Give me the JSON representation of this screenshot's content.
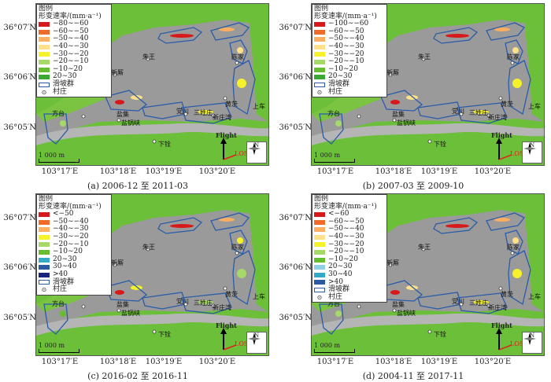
{
  "panels": [
    {
      "caption": "(a) 2006-12 至 2011-03",
      "legend": {
        "title": "图例",
        "subtitle": "形变速率/(mm·a⁻¹)",
        "items": [
          {
            "label": "−80∼−60",
            "color": "#d7191c"
          },
          {
            "label": "−60∼−50",
            "color": "#f06a2a"
          },
          {
            "label": "−50∼−40",
            "color": "#fdae61"
          },
          {
            "label": "−40∼−30",
            "color": "#fee08b"
          },
          {
            "label": "−30∼−20",
            "color": "#f5f22c"
          },
          {
            "label": "−20∼−10",
            "color": "#a6d96a"
          },
          {
            "label": "−10∼20",
            "color": "#66bd30"
          },
          {
            "label": "20∼30",
            "color": "#39a834"
          }
        ],
        "landslide": "滑坡群",
        "village": "村庄"
      }
    },
    {
      "caption": "(b) 2007-03 至 2009-10",
      "legend": {
        "title": "图例",
        "subtitle": "形变速率/(mm·a⁻¹)",
        "items": [
          {
            "label": "−100∼−60",
            "color": "#d7191c"
          },
          {
            "label": "−60∼−50",
            "color": "#f06a2a"
          },
          {
            "label": "−50∼−40",
            "color": "#fdae61"
          },
          {
            "label": "−40∼−30",
            "color": "#fee08b"
          },
          {
            "label": "−30∼−20",
            "color": "#f5f22c"
          },
          {
            "label": "−20∼−10",
            "color": "#a6d96a"
          },
          {
            "label": "−10∼20",
            "color": "#66bd30"
          },
          {
            "label": "20∼30",
            "color": "#39a834"
          }
        ],
        "landslide": "滑坡群",
        "village": "村庄"
      }
    },
    {
      "caption": "(c) 2016-02 至 2016-11",
      "legend": {
        "title": "图例",
        "subtitle": "形变速率/(mm·a⁻¹)",
        "items": [
          {
            "label": "<−50",
            "color": "#d7191c"
          },
          {
            "label": "−50∼−40",
            "color": "#f06a2a"
          },
          {
            "label": "−40∼−30",
            "color": "#fdae61"
          },
          {
            "label": "−30∼−20",
            "color": "#f5f22c"
          },
          {
            "label": "−20∼−10",
            "color": "#a6d96a"
          },
          {
            "label": "−10∼20",
            "color": "#66bd30"
          },
          {
            "label": "20∼30",
            "color": "#33a9c6"
          },
          {
            "label": "30∼40",
            "color": "#2c5aa0"
          },
          {
            "label": ">40",
            "color": "#1a237e"
          }
        ],
        "landslide": "滑坡群",
        "village": "村庄"
      }
    },
    {
      "caption": "(d) 2004-11 至 2017-11",
      "legend": {
        "title": "图例",
        "subtitle": "形变速率/(mm·a⁻¹)",
        "items": [
          {
            "label": "<−60",
            "color": "#d7191c"
          },
          {
            "label": "−60∼−50",
            "color": "#f06a2a"
          },
          {
            "label": "−50∼−40",
            "color": "#fdae61"
          },
          {
            "label": "−40∼−30",
            "color": "#fee08b"
          },
          {
            "label": "−30∼−20",
            "color": "#f5f22c"
          },
          {
            "label": "−20∼−10",
            "color": "#a6d96a"
          },
          {
            "label": "−10∼20",
            "color": "#66bd30"
          },
          {
            "label": "20∼30",
            "color": "#8fd0e6"
          },
          {
            "label": "30∼40",
            "color": "#33a9c6"
          },
          {
            "label": ">40",
            "color": "#2c5aa0"
          }
        ],
        "landslide": "滑坡群",
        "village": "村庄"
      }
    }
  ],
  "lat_labels": [
    "36°07′N",
    "36°06′N",
    "36°05′N"
  ],
  "lon_labels": [
    "103°17′E",
    "103°18′E",
    "103°19′E",
    "103°20′E"
  ],
  "places": {
    "zhuwang": "朱王",
    "xinsi": "新厮",
    "chenjia": "陈家",
    "fangtai": "方台",
    "yangua": "盐锅峡",
    "yanguo": "盐锅峡",
    "yanguo_label": "盐集",
    "huangci": "黄茨",
    "dangchuan": "党川",
    "sanxingzhuang": "三姓庄",
    "xinzhuangwan": "新庄湾",
    "xiapu": "下铨",
    "shangche": "上车"
  },
  "scale": "1 000 m",
  "flight": "Flight",
  "los": "LOS",
  "north": "N",
  "colors": {
    "hillshade": "#9a9a9a",
    "green": "#6cbf38",
    "landslide_outline": "#2a5ca8"
  }
}
